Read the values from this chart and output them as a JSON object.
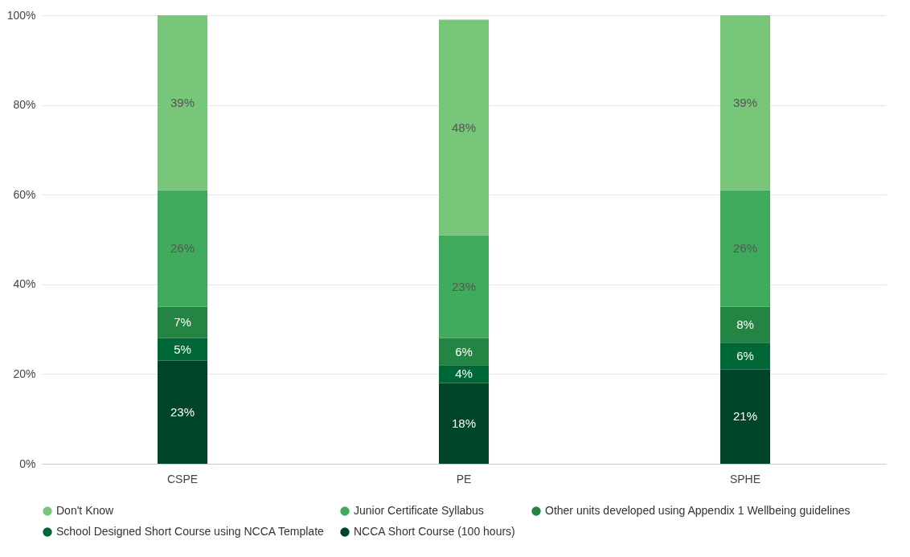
{
  "chart_data": {
    "type": "bar",
    "stacked": true,
    "categories": [
      "CSPE",
      "PE",
      "SPHE"
    ],
    "series": [
      {
        "name": "NCCA Short Course (100 hours)",
        "color": "#00452a",
        "values": [
          23,
          18,
          21
        ],
        "value_labels": [
          "23%",
          "18%",
          "21%"
        ]
      },
      {
        "name": "School Designed Short Course using NCCA Template",
        "color": "#006837",
        "values": [
          5,
          4,
          6
        ],
        "value_labels": [
          "5%",
          "4%",
          "6%"
        ]
      },
      {
        "name": "Other units developed using Appendix 1 Wellbeing guidelines",
        "color": "#238443",
        "values": [
          7,
          6,
          8
        ],
        "value_labels": [
          "7%",
          "6%",
          "8%"
        ]
      },
      {
        "name": "Junior Certificate Syllabus",
        "color": "#41ab5d",
        "values": [
          26,
          23,
          26
        ],
        "value_labels": [
          "26%",
          "23%",
          "26%"
        ]
      },
      {
        "name": "Don't Know",
        "color": "#78c679",
        "values": [
          39,
          48,
          39
        ],
        "value_labels": [
          "39%",
          "48%",
          "39%"
        ]
      }
    ],
    "ylim": [
      0,
      100
    ],
    "yticks": [
      {
        "value": 0,
        "label": "0%"
      },
      {
        "value": 20,
        "label": "20%"
      },
      {
        "value": 40,
        "label": "40%"
      },
      {
        "value": 60,
        "label": "60%"
      },
      {
        "value": 80,
        "label": "80%"
      },
      {
        "value": 100,
        "label": "100%"
      }
    ],
    "grid": "y",
    "legend": "bottom",
    "marker": "circle"
  }
}
